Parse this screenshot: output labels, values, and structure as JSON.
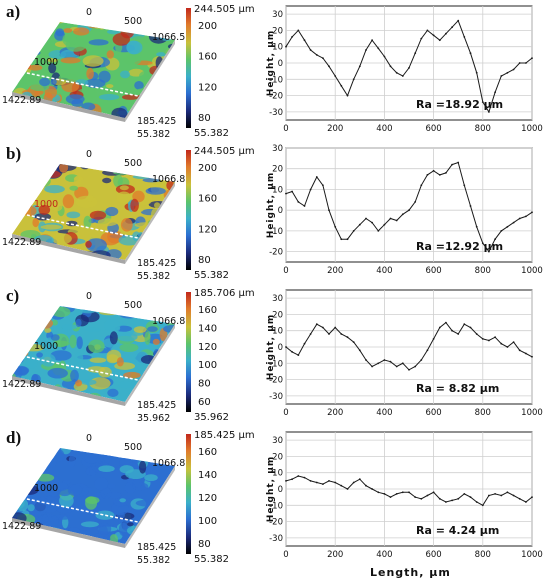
{
  "x_axis_label": "Length, μm",
  "chart_data": [
    {
      "panel_label": "a)",
      "type": "line",
      "ylabel": "Height, μm",
      "xlim": [
        0,
        1000
      ],
      "ylim": [
        -35,
        35
      ],
      "xticks": [
        0,
        200,
        400,
        600,
        800,
        1000
      ],
      "yticks": [
        30,
        20,
        10,
        0,
        -10,
        -20,
        -30
      ],
      "grid": true,
      "annotation": "Ra =18.92 μm",
      "surface": {
        "axis_labels": [
          "0",
          "500",
          "1066.52",
          "1000",
          "1422.89",
          "185.425",
          "55.382"
        ],
        "colorbar_max": "244.505 μm",
        "colorbar_ticks": [
          "200",
          "160",
          "120",
          "80"
        ],
        "colorbar_min": "55.382",
        "palette": [
          "#1b2a7a",
          "#2c6fd1",
          "#3bb0c9",
          "#5cc46a",
          "#c9c13b",
          "#e07a2b",
          "#c2281c"
        ]
      },
      "x": [
        0,
        25,
        50,
        75,
        100,
        125,
        150,
        175,
        200,
        225,
        250,
        275,
        300,
        325,
        350,
        375,
        400,
        425,
        450,
        475,
        500,
        525,
        550,
        575,
        600,
        625,
        650,
        675,
        700,
        725,
        750,
        775,
        800,
        825,
        850,
        875,
        900,
        925,
        950,
        975,
        1000
      ],
      "y": [
        10,
        16,
        20,
        14,
        8,
        5,
        3,
        -2,
        -8,
        -14,
        -20,
        -10,
        -2,
        8,
        14,
        9,
        4,
        -2,
        -6,
        -8,
        -3,
        6,
        15,
        20,
        17,
        14,
        18,
        22,
        26,
        16,
        6,
        -6,
        -24,
        -30,
        -18,
        -8,
        -6,
        -4,
        0,
        0,
        3
      ]
    },
    {
      "panel_label": "b)",
      "type": "line",
      "ylabel": "Height, μm",
      "xlim": [
        0,
        1000
      ],
      "ylim": [
        -25,
        30
      ],
      "xticks": [
        0,
        200,
        400,
        600,
        800,
        1000
      ],
      "yticks": [
        30,
        20,
        10,
        0,
        -10,
        -20
      ],
      "grid": true,
      "annotation": "Ra =12.92 μm",
      "surface": {
        "axis_labels": [
          "0",
          "500",
          "1066.82",
          "1000",
          "1422.89",
          "185.425",
          "55.382"
        ],
        "colorbar_max": "244.505 μm",
        "colorbar_ticks": [
          "200",
          "160",
          "120",
          "80"
        ],
        "colorbar_min": "55.382",
        "palette": [
          "#1b2a7a",
          "#2c6fd1",
          "#3bb0c9",
          "#5cc46a",
          "#c9c13b",
          "#e07a2b",
          "#c2281c"
        ]
      },
      "x": [
        0,
        25,
        50,
        75,
        100,
        125,
        150,
        175,
        200,
        225,
        250,
        275,
        300,
        325,
        350,
        375,
        400,
        425,
        450,
        475,
        500,
        525,
        550,
        575,
        600,
        625,
        650,
        675,
        700,
        725,
        750,
        775,
        800,
        825,
        850,
        875,
        900,
        925,
        950,
        975,
        1000
      ],
      "y": [
        8,
        9,
        4,
        2,
        10,
        16,
        12,
        0,
        -8,
        -14,
        -14,
        -10,
        -7,
        -4,
        -6,
        -10,
        -7,
        -4,
        -5,
        -2,
        0,
        4,
        12,
        17,
        19,
        17,
        18,
        22,
        23,
        12,
        2,
        -8,
        -16,
        -20,
        -14,
        -10,
        -8,
        -6,
        -4,
        -3,
        -1
      ]
    },
    {
      "panel_label": "c)",
      "type": "line",
      "ylabel": "Height, μm",
      "xlim": [
        0,
        1000
      ],
      "ylim": [
        -35,
        35
      ],
      "xticks": [
        0,
        200,
        400,
        600,
        800,
        1000
      ],
      "yticks": [
        30,
        20,
        10,
        0,
        -10,
        -20,
        -30
      ],
      "grid": true,
      "annotation": "Ra = 8.82 μm",
      "surface": {
        "axis_labels": [
          "0",
          "500",
          "1066.82",
          "1000",
          "1422.89",
          "185.425",
          "35.962"
        ],
        "colorbar_max": "185.706 μm",
        "colorbar_ticks": [
          "160",
          "140",
          "120",
          "100",
          "80",
          "60"
        ],
        "colorbar_min": "35.962",
        "palette": [
          "#1b2a7a",
          "#2c6fd1",
          "#3bb0c9",
          "#5cc46a",
          "#c9c13b",
          "#e07a2b",
          "#c2281c"
        ]
      },
      "x": [
        0,
        25,
        50,
        75,
        100,
        125,
        150,
        175,
        200,
        225,
        250,
        275,
        300,
        325,
        350,
        375,
        400,
        425,
        450,
        475,
        500,
        525,
        550,
        575,
        600,
        625,
        650,
        675,
        700,
        725,
        750,
        775,
        800,
        825,
        850,
        875,
        900,
        925,
        950,
        975,
        1000
      ],
      "y": [
        0,
        -3,
        -5,
        2,
        8,
        14,
        12,
        8,
        12,
        8,
        6,
        3,
        -2,
        -8,
        -12,
        -10,
        -8,
        -9,
        -12,
        -10,
        -14,
        -12,
        -8,
        -2,
        5,
        12,
        15,
        10,
        8,
        14,
        12,
        8,
        5,
        4,
        6,
        2,
        0,
        3,
        -2,
        -4,
        -6
      ]
    },
    {
      "panel_label": "d)",
      "type": "line",
      "ylabel": "Height, μm",
      "xlim": [
        0,
        1000
      ],
      "ylim": [
        -35,
        35
      ],
      "xticks": [
        0,
        200,
        400,
        600,
        800,
        1000
      ],
      "yticks": [
        30,
        20,
        10,
        0,
        -10,
        -20,
        -30
      ],
      "grid": true,
      "annotation": "Ra = 4.24 μm",
      "surface": {
        "axis_labels": [
          "0",
          "500",
          "1066.82",
          "1000",
          "1422.89",
          "185.425",
          "55.382"
        ],
        "colorbar_max": "185.425 μm",
        "colorbar_ticks": [
          "160",
          "140",
          "120",
          "100",
          "80"
        ],
        "colorbar_min": "55.382",
        "palette": [
          "#1b2a7a",
          "#2c6fd1",
          "#3bb0c9",
          "#5cc46a",
          "#c9c13b",
          "#e07a2b",
          "#c2281c"
        ]
      },
      "x": [
        0,
        25,
        50,
        75,
        100,
        125,
        150,
        175,
        200,
        225,
        250,
        275,
        300,
        325,
        350,
        375,
        400,
        425,
        450,
        475,
        500,
        525,
        550,
        575,
        600,
        625,
        650,
        675,
        700,
        725,
        750,
        775,
        800,
        825,
        850,
        875,
        900,
        925,
        950,
        975,
        1000
      ],
      "y": [
        5,
        6,
        8,
        7,
        5,
        4,
        3,
        5,
        4,
        2,
        0,
        4,
        6,
        2,
        0,
        -2,
        -3,
        -5,
        -3,
        -2,
        -2,
        -5,
        -6,
        -4,
        -2,
        -6,
        -8,
        -7,
        -6,
        -3,
        -5,
        -8,
        -10,
        -4,
        -3,
        -4,
        -2,
        -4,
        -6,
        -8,
        -5
      ]
    }
  ]
}
